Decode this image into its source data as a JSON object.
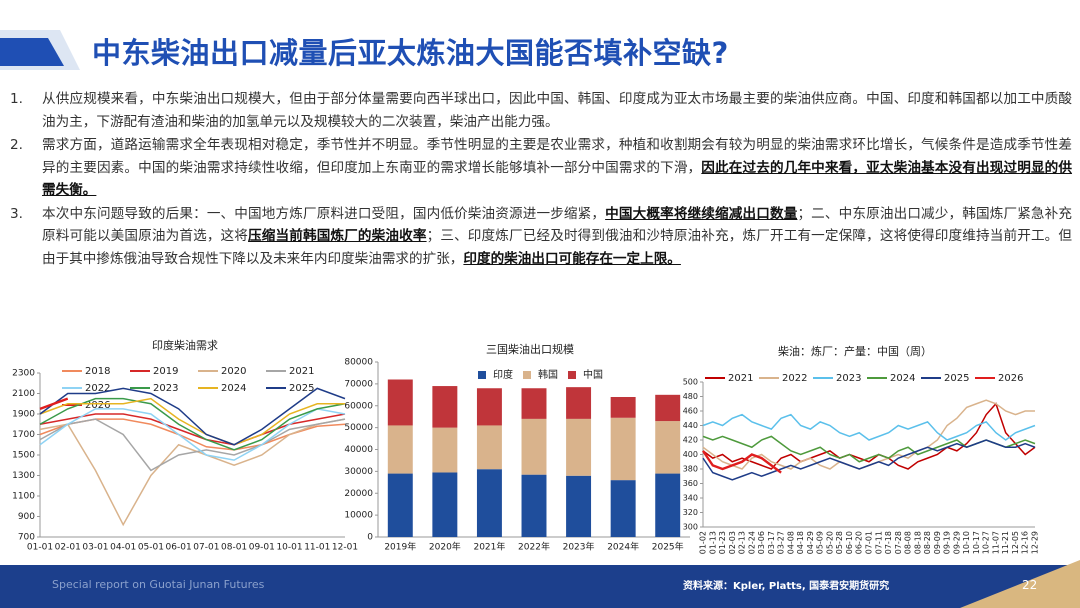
{
  "title": "中东柴油出口减量后亚太炼油大国能否填补空缺?",
  "paragraphs": [
    {
      "number": "1.",
      "runs": [
        {
          "text": "从供应规模来看，中东柴油出口规模大，但由于部分体量需要向西半球出口，因此中国、韩国、印度成为亚太市场最主要的柴油供应商。中国、印度和韩国都以加工中质酸油为主，下游配有渣油和柴油的加氢单元以及规模较大的二次装置，柴油产出能力强。",
          "bold": false
        }
      ]
    },
    {
      "number": "2.",
      "runs": [
        {
          "text": "需求方面，道路运输需求全年表现相对稳定，季节性并不明显。季节性明显的主要是农业需求，种植和收割期会有较为明显的柴油需求环比增长，气候条件是造成季节性差异的主要因素。中国的柴油需求持续性收缩，但印度加上东南亚的需求增长能够填补一部分中国需求的下滑，",
          "bold": false
        },
        {
          "text": "因此在过去的几年中来看，亚太柴油基本没有出现过明显的供需失衡。",
          "bold": true
        }
      ]
    },
    {
      "number": "3.",
      "runs": [
        {
          "text": "本次中东问题导致的后果：一、中国地方炼厂原料进口受阻，国内低价柴油资源进一步缩紧，",
          "bold": false
        },
        {
          "text": "中国大概率将继续缩减出口数量",
          "bold": true
        },
        {
          "text": "；二、中东原油出口减少，韩国炼厂紧急补充原料可能以美国原油为首选，这将",
          "bold": false
        },
        {
          "text": "压缩当前韩国炼厂的柴油收率",
          "bold": true
        },
        {
          "text": "；三、印度炼厂已经及时得到俄油和沙特原油补充，炼厂开工有一定保障，这将使得印度维持当前开工。但由于其中掺炼俄油导致合规性下降以及未来年内印度柴油需求的扩张，",
          "bold": false
        },
        {
          "text": "印度的柴油出口可能存在一定上限。",
          "bold": true
        }
      ]
    }
  ],
  "footer": "Special report on Guotai Junan Futures",
  "source": "资料来源：Kpler, Platts, 国泰君安期货研究",
  "page_number": "22",
  "chart_data": [
    {
      "type": "line",
      "title": "印度柴油需求",
      "categories": [
        "01-01",
        "02-01",
        "03-01",
        "04-01",
        "05-01",
        "06-01",
        "07-01",
        "08-01",
        "09-01",
        "10-01",
        "11-01",
        "12-01"
      ],
      "ylim": [
        700,
        2300
      ],
      "yticks": [
        700,
        900,
        1100,
        1300,
        1500,
        1700,
        1900,
        2100,
        2300
      ],
      "series": [
        {
          "name": "2018",
          "color": "#f08a5d",
          "values": [
            1700,
            1800,
            1850,
            1850,
            1800,
            1700,
            1580,
            1550,
            1600,
            1700,
            1780,
            1800
          ]
        },
        {
          "name": "2019",
          "color": "#d62828",
          "values": [
            1800,
            1850,
            1900,
            1900,
            1850,
            1750,
            1650,
            1600,
            1700,
            1800,
            1850,
            1900
          ]
        },
        {
          "name": "2020",
          "color": "#d9b38c",
          "values": [
            1750,
            1800,
            1350,
            820,
            1300,
            1600,
            1500,
            1400,
            1500,
            1700,
            1800,
            1850
          ]
        },
        {
          "name": "2021",
          "color": "#a6a6a6",
          "values": [
            1650,
            1800,
            1850,
            1700,
            1350,
            1500,
            1550,
            1500,
            1600,
            1750,
            1800,
            1850
          ]
        },
        {
          "name": "2022",
          "color": "#8fd3f4",
          "values": [
            1600,
            1800,
            1950,
            1950,
            1900,
            1700,
            1500,
            1450,
            1600,
            1800,
            1950,
            1900
          ]
        },
        {
          "name": "2023",
          "color": "#3a9a4a",
          "values": [
            1800,
            1950,
            2050,
            2050,
            2000,
            1800,
            1650,
            1550,
            1650,
            1850,
            1950,
            2000
          ]
        },
        {
          "name": "2024",
          "color": "#e6b422",
          "values": [
            1900,
            2000,
            2000,
            2000,
            2050,
            1850,
            1700,
            1600,
            1700,
            1900,
            2000,
            2000
          ]
        },
        {
          "name": "2025",
          "color": "#1f3c88",
          "values": [
            1900,
            2100,
            2100,
            2150,
            2100,
            1950,
            1700,
            1600,
            1750,
            1950,
            2150,
            2050
          ]
        },
        {
          "name": "2026",
          "color": "#e01e1e",
          "values": [
            1950,
            2050,
            null,
            null,
            null,
            null,
            null,
            null,
            null,
            null,
            null,
            null
          ]
        }
      ]
    },
    {
      "type": "stacked_bar",
      "title": "三国柴油出口规模",
      "categories": [
        "2019年",
        "2020年",
        "2021年",
        "2022年",
        "2023年",
        "2024年",
        "2025年"
      ],
      "ylim": [
        0,
        80000
      ],
      "yticks": [
        0,
        10000,
        20000,
        30000,
        40000,
        50000,
        60000,
        70000,
        80000
      ],
      "series": [
        {
          "name": "印度",
          "color": "#1f4e9c",
          "values": [
            29000,
            29500,
            31000,
            28500,
            28000,
            26000,
            29000
          ]
        },
        {
          "name": "韩国",
          "color": "#d9b38c",
          "values": [
            22000,
            20500,
            20000,
            25500,
            26000,
            28500,
            24000
          ]
        },
        {
          "name": "中国",
          "color": "#c0353a",
          "values": [
            21000,
            19000,
            17000,
            14000,
            14500,
            9500,
            12000
          ]
        }
      ]
    },
    {
      "type": "line",
      "title": "柴油：炼厂：产量：中国（周）",
      "categories": [
        "01-02",
        "01-13",
        "01-23",
        "02-03",
        "02-13",
        "02-24",
        "03-06",
        "03-17",
        "03-27",
        "04-08",
        "04-18",
        "04-29",
        "05-09",
        "05-20",
        "05-28",
        "06-10",
        "06-20",
        "07-01",
        "07-11",
        "07-18",
        "07-28",
        "08-08",
        "08-18",
        "08-28",
        "09-09",
        "09-19",
        "09-29",
        "10-10",
        "10-17",
        "10-27",
        "11-07",
        "11-21",
        "12-05",
        "12-16",
        "12-29"
      ],
      "ylim": [
        300,
        500
      ],
      "yticks": [
        300,
        320,
        340,
        360,
        380,
        400,
        420,
        440,
        460,
        480,
        500
      ],
      "series": [
        {
          "name": "2021",
          "color": "#c00000",
          "values": [
            405,
            395,
            400,
            390,
            395,
            390,
            385,
            380,
            395,
            400,
            390,
            395,
            400,
            405,
            395,
            400,
            395,
            390,
            400,
            395,
            385,
            380,
            390,
            395,
            400,
            410,
            405,
            415,
            430,
            455,
            470,
            430,
            415,
            400,
            410
          ]
        },
        {
          "name": "2022",
          "color": "#d9b38c",
          "values": [
            410,
            400,
            390,
            385,
            380,
            395,
            400,
            390,
            385,
            380,
            390,
            395,
            385,
            380,
            390,
            385,
            380,
            385,
            390,
            395,
            400,
            395,
            405,
            410,
            420,
            440,
            450,
            465,
            470,
            475,
            470,
            460,
            455,
            460,
            460
          ]
        },
        {
          "name": "2023",
          "color": "#5bc0eb",
          "values": [
            440,
            445,
            440,
            450,
            455,
            445,
            440,
            435,
            450,
            455,
            440,
            435,
            445,
            440,
            430,
            425,
            430,
            420,
            425,
            430,
            440,
            435,
            440,
            445,
            430,
            420,
            425,
            430,
            440,
            445,
            430,
            420,
            430,
            435,
            440
          ]
        },
        {
          "name": "2024",
          "color": "#4e9a3c",
          "values": [
            425,
            420,
            425,
            420,
            415,
            410,
            420,
            425,
            415,
            405,
            400,
            405,
            410,
            400,
            395,
            400,
            390,
            395,
            400,
            395,
            405,
            410,
            400,
            405,
            410,
            415,
            420,
            410,
            415,
            420,
            415,
            410,
            415,
            420,
            415
          ]
        },
        {
          "name": "2025",
          "color": "#1f3c88",
          "values": [
            395,
            375,
            370,
            365,
            370,
            375,
            370,
            375,
            380,
            385,
            380,
            385,
            390,
            395,
            390,
            385,
            380,
            385,
            390,
            385,
            395,
            400,
            405,
            410,
            405,
            410,
            415,
            410,
            415,
            420,
            415,
            410,
            410,
            415,
            410
          ]
        },
        {
          "name": "2026",
          "color": "#e01e1e",
          "values": [
            405,
            385,
            380,
            385,
            390,
            400,
            395,
            385,
            375,
            null,
            null,
            null,
            null,
            null,
            null,
            null,
            null,
            null,
            null,
            null,
            null,
            null,
            null,
            null,
            null,
            null,
            null,
            null,
            null,
            null,
            null,
            null,
            null,
            null,
            null
          ]
        }
      ]
    }
  ]
}
